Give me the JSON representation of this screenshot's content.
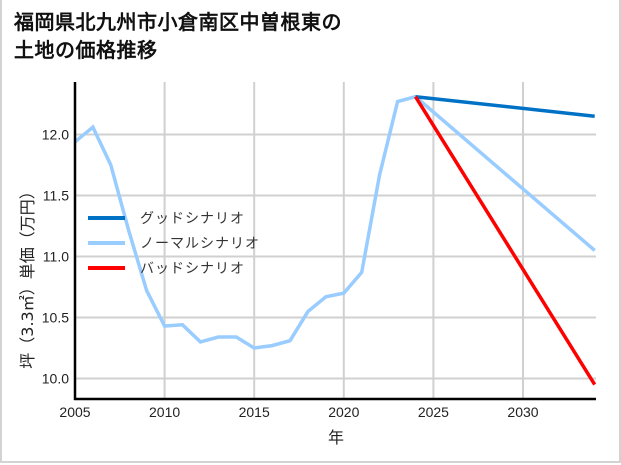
{
  "title_line1": "福岡県北九州市小倉南区中曽根東の",
  "title_line2": "土地の価格推移",
  "chart_data": {
    "type": "line",
    "title": "福岡県北九州市小倉南区中曽根東の土地の価格推移",
    "xlabel": "年",
    "ylabel": "坪（3.3㎡）単価（万円）",
    "xlim": [
      2005,
      2034
    ],
    "ylim": [
      9.83,
      12.45
    ],
    "xticks": [
      2005,
      2010,
      2015,
      2020,
      2025,
      2030
    ],
    "yticks": [
      10.0,
      10.5,
      11.0,
      11.5,
      12.0
    ],
    "grid": true,
    "legend_position": "center-left",
    "series": [
      {
        "name": "ノーマルシナリオ",
        "color": "#99ccff",
        "x": [
          2005,
          2006,
          2007,
          2008,
          2009,
          2010,
          2011,
          2012,
          2013,
          2014,
          2015,
          2016,
          2017,
          2018,
          2019,
          2020,
          2021,
          2022,
          2023,
          2024,
          2034
        ],
        "values": [
          11.94,
          12.06,
          11.75,
          11.21,
          10.72,
          10.43,
          10.44,
          10.3,
          10.34,
          10.34,
          10.25,
          10.27,
          10.31,
          10.55,
          10.67,
          10.7,
          10.87,
          11.67,
          12.27,
          12.31,
          11.05
        ]
      },
      {
        "name": "グッドシナリオ",
        "color": "#0072c6",
        "x": [
          2024,
          2034
        ],
        "values": [
          12.31,
          12.15
        ]
      },
      {
        "name": "バッドシナリオ",
        "color": "#ff0000",
        "x": [
          2024,
          2034
        ],
        "values": [
          12.31,
          9.95
        ]
      }
    ]
  },
  "legend": {
    "items": [
      {
        "label": "グッドシナリオ",
        "color": "#0072c6"
      },
      {
        "label": "ノーマルシナリオ",
        "color": "#99ccff"
      },
      {
        "label": "バッドシナリオ",
        "color": "#ff0000"
      }
    ]
  }
}
